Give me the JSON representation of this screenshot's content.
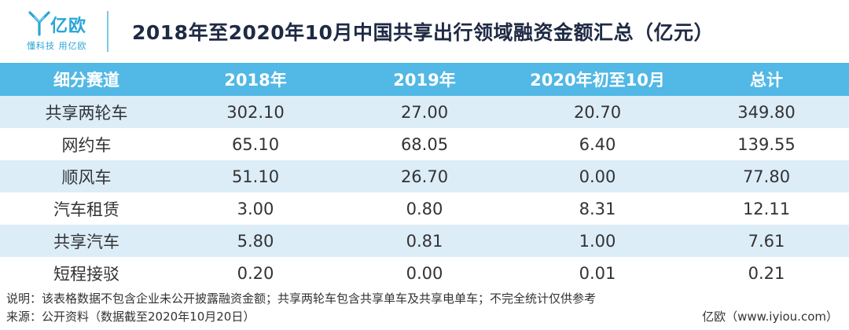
{
  "brand": {
    "name": "亿欧",
    "slogan": "懂科技 用亿欧",
    "color": "#2aa5d6"
  },
  "title": "2018年至2020年10月中国共享出行领域融资金额汇总（亿元）",
  "table": {
    "headers": [
      "细分赛道",
      "2018年",
      "2019年",
      "2020年初至10月",
      "总计"
    ],
    "rows": [
      [
        "共享两轮车",
        "302.10",
        "27.00",
        "20.70",
        "349.80"
      ],
      [
        "网约车",
        "65.10",
        "68.05",
        "6.40",
        "139.55"
      ],
      [
        "顺风车",
        "51.10",
        "26.70",
        "0.00",
        "77.80"
      ],
      [
        "汽车租赁",
        "3.00",
        "0.80",
        "8.31",
        "12.11"
      ],
      [
        "共享汽车",
        "5.80",
        "0.81",
        "1.00",
        "7.61"
      ],
      [
        "短程接驳",
        "0.20",
        "0.00",
        "0.01",
        "0.21"
      ]
    ],
    "header_color": "#52b8e5",
    "stripe_color": "#dcedf8"
  },
  "notes": {
    "explanation": "说明：该表格数据不包含企业未公开披露融资金额；共享两轮车包含共享单车及共享电单车；不完全统计仅供参考",
    "source": "来源：公开资料（数据截至2020年10月20日）",
    "site": "亿欧（www.iyiou.com）"
  }
}
